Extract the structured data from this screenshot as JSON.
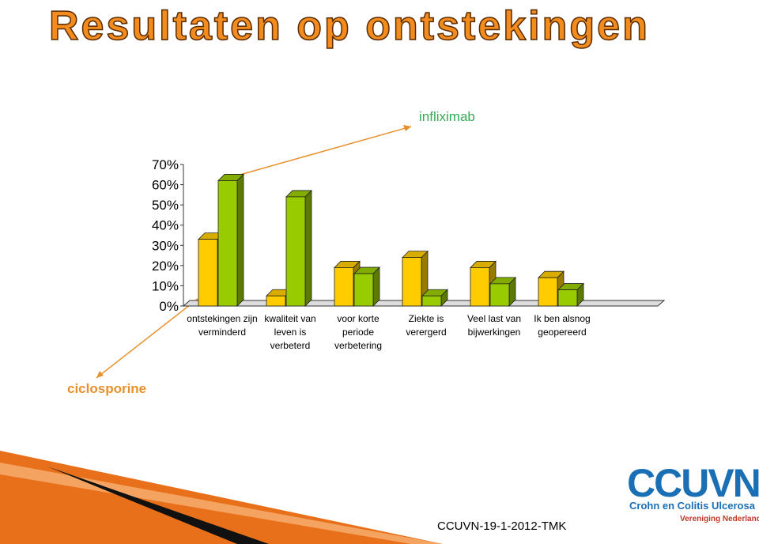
{
  "title": "Resultaten op ontstekingen",
  "chart_data": {
    "type": "bar",
    "categories": [
      "ontstekingen zijn verminderd",
      "kwaliteit van leven is verbeterd",
      "voor korte periode verbetering",
      "Ziekte is verergerd",
      "Veel last van bijwerkingen",
      "Ik ben alsnog geopereerd"
    ],
    "series": [
      {
        "name": "ciclosporine",
        "color": "#ffcc00",
        "values": [
          33,
          5,
          19,
          24,
          19,
          14
        ]
      },
      {
        "name": "infliximab",
        "color": "#99cc00",
        "values": [
          62,
          54,
          16,
          5,
          11,
          8
        ]
      }
    ],
    "ylim": [
      0,
      70
    ],
    "yticks": [
      {
        "value": 0,
        "label": "0%"
      },
      {
        "value": 10,
        "label": "10%"
      },
      {
        "value": 20,
        "label": "20%"
      },
      {
        "value": 30,
        "label": "30%"
      },
      {
        "value": 40,
        "label": "40%"
      },
      {
        "value": 50,
        "label": "50%"
      },
      {
        "value": 60,
        "label": "60%"
      },
      {
        "value": 70,
        "label": "70%"
      }
    ]
  },
  "footer": {
    "code": "CCUVN-19-1-2012-TMK",
    "logo": "CCUVN",
    "org": "Crohn en Colitis Ulcerosa",
    "sub": "Vereniging Nederland"
  }
}
